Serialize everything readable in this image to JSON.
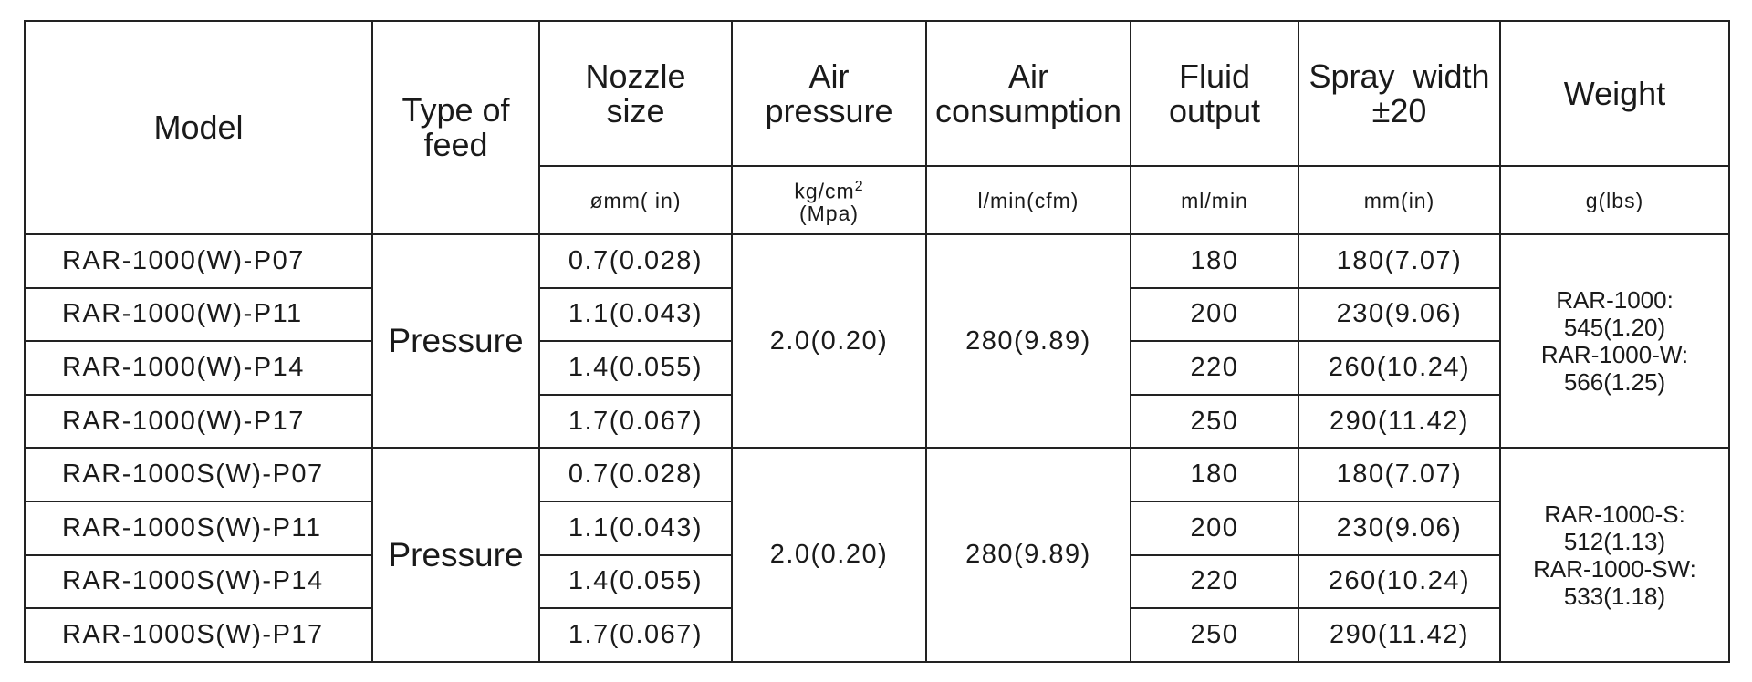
{
  "table": {
    "headers": [
      "Model",
      "Type of feed",
      "Nozzle size",
      "Air pressure",
      "Air consumption",
      "Fluid output",
      "Spray width ±20",
      "Weight"
    ],
    "units": {
      "nozzle": "ømm( in)",
      "pressure": [
        "kg/cm",
        "2",
        "(Mpa)"
      ],
      "consumption": "l/min(cfm)",
      "fluid": "ml/min",
      "spray": "mm(in)",
      "weight": "g(lbs)"
    },
    "groups": [
      {
        "feed": "Pressure",
        "air_pressure": "2.0(0.20)",
        "air_consumption": "280(9.89)",
        "weight": [
          "RAR-1000:",
          "545(1.20)",
          "RAR-1000-W:",
          "566(1.25)"
        ],
        "rows": [
          [
            "RAR-1000(W)-P07",
            "0.7(0.028)",
            "180",
            "180(7.07)"
          ],
          [
            "RAR-1000(W)-P11",
            "1.1(0.043)",
            "200",
            "230(9.06)"
          ],
          [
            "RAR-1000(W)-P14",
            "1.4(0.055)",
            "220",
            "260(10.24)"
          ],
          [
            "RAR-1000(W)-P17",
            "1.7(0.067)",
            "250",
            "290(11.42)"
          ]
        ]
      },
      {
        "feed": "Pressure",
        "air_pressure": "2.0(0.20)",
        "air_consumption": "280(9.89)",
        "weight": [
          "RAR-1000-S:",
          "512(1.13)",
          "RAR-1000-SW:",
          "533(1.18)"
        ],
        "rows": [
          [
            "RAR-1000S(W)-P07",
            "0.7(0.028)",
            "180",
            "180(7.07)"
          ],
          [
            "RAR-1000S(W)-P11",
            "1.1(0.043)",
            "200",
            "230(9.06)"
          ],
          [
            "RAR-1000S(W)-P14",
            "1.4(0.055)",
            "220",
            "260(10.24)"
          ],
          [
            "RAR-1000S(W)-P17",
            "1.7(0.067)",
            "250",
            "290(11.42)"
          ]
        ]
      }
    ]
  }
}
